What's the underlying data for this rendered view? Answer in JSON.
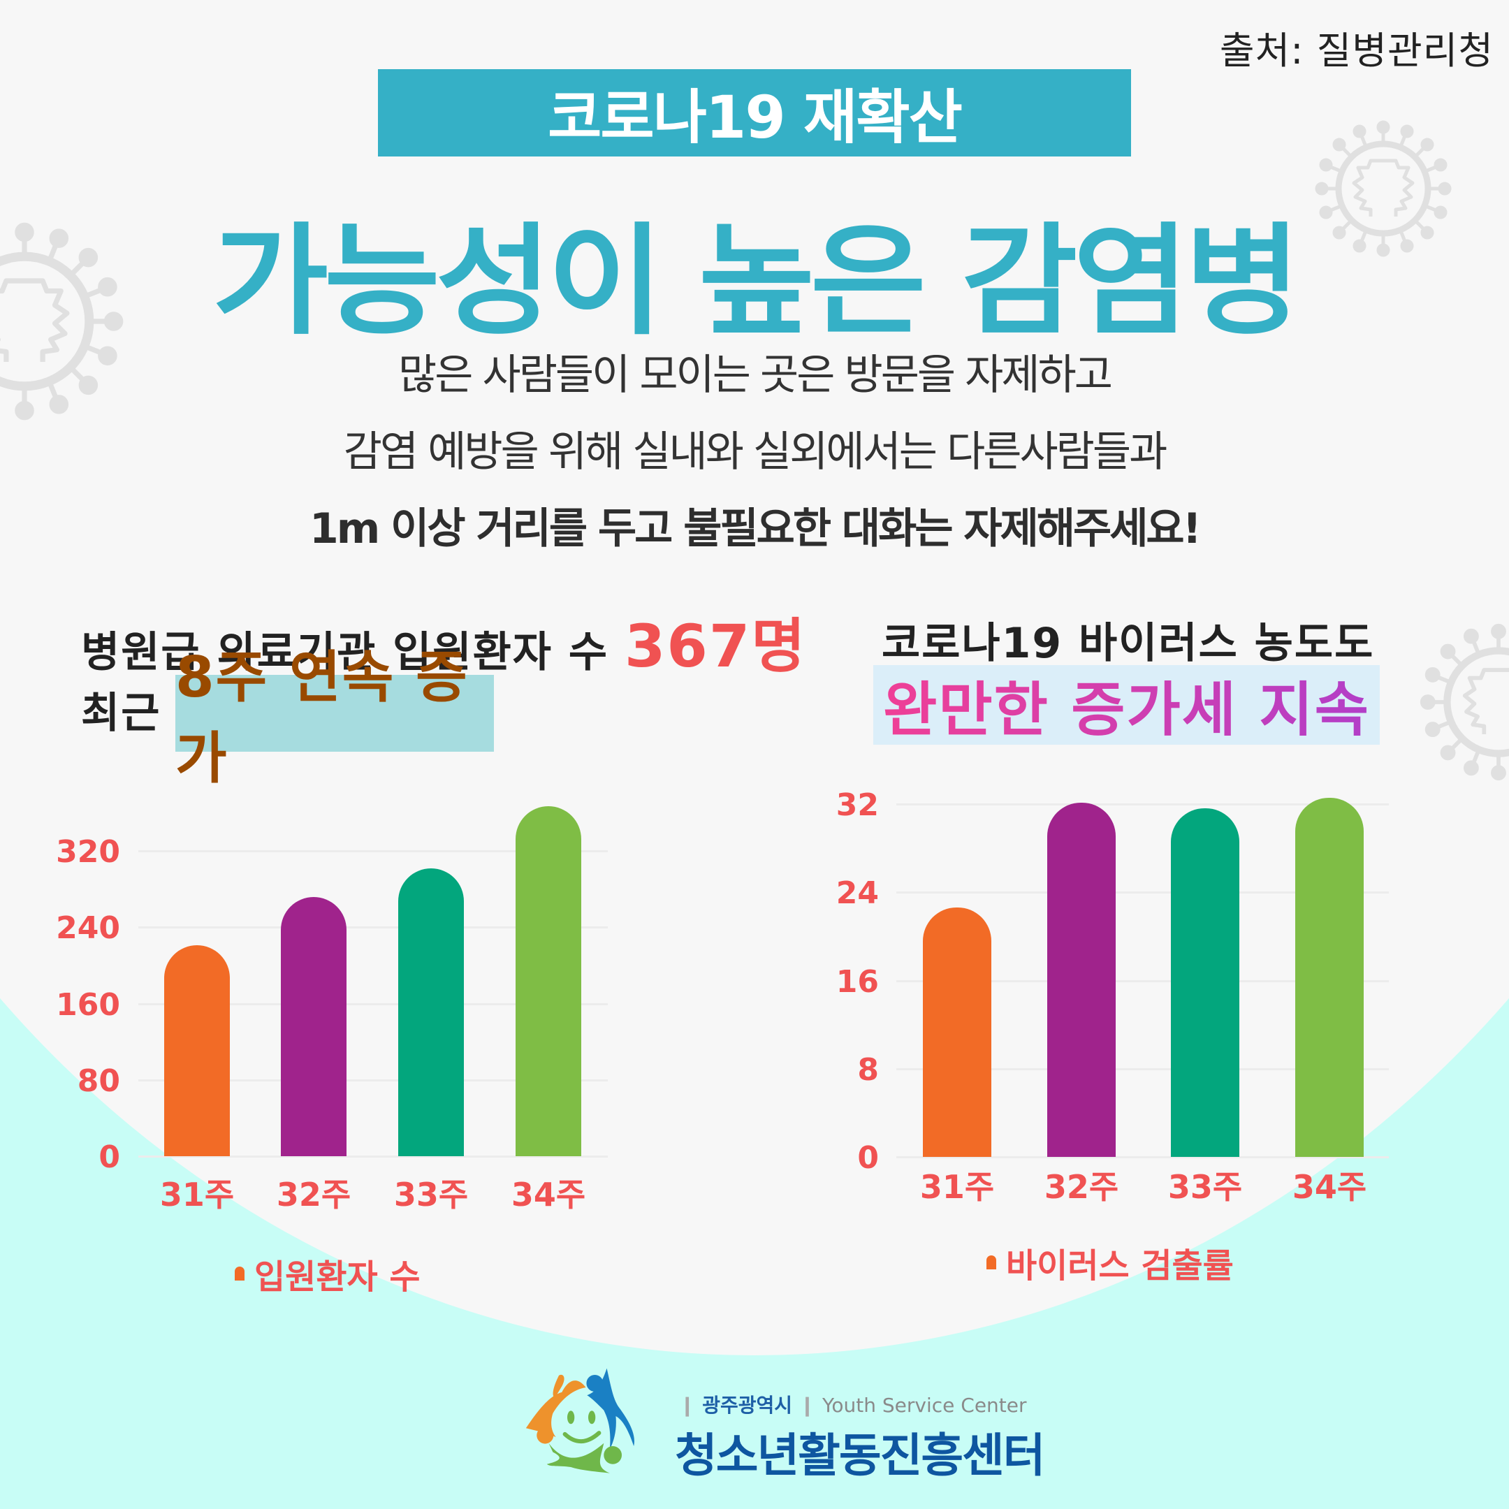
{
  "source": "출처: 질병관리청",
  "header": {
    "title_bar": "코로나19 재확산",
    "big_title": "가능성이 높은 감염병",
    "accent_color": "#35b0c6"
  },
  "body": {
    "line1": "많은 사람들이 모이는 곳은 방문을 자제하고",
    "line2": "감염 예방을 위해 실내와 실외에서는 다른사람들과",
    "line3": "1m 이상 거리를 두고 불필요한 대화는 자제해주세요!"
  },
  "left_panel": {
    "subtitle_prefix": "병원급 의료기관 입원환자 수",
    "subtitle_number": "367명",
    "line2_prefix": "최근",
    "highlight": "8주 연속 증가",
    "highlight_bg": "#a6dcdf",
    "highlight_color": "#994a00"
  },
  "right_panel": {
    "subtitle": "코로나19 바이러스 농도도",
    "highlight": "완만한 증가세 지속",
    "highlight_bg": "#dbeef9"
  },
  "chart_data": [
    {
      "type": "bar",
      "title": "병원급 의료기관 입원환자 수",
      "categories": [
        "31주",
        "32주",
        "33주",
        "34주"
      ],
      "values": [
        221,
        272,
        302,
        367
      ],
      "bar_colors": [
        "#f26b26",
        "#a0238c",
        "#03a67d",
        "#7fbd45"
      ],
      "yticks": [
        "0",
        "80",
        "160",
        "240",
        "320"
      ],
      "ylim": [
        0,
        367
      ],
      "legend": "입원환자 수",
      "xlabel": "",
      "ylabel": "",
      "grid": true,
      "legend_position": "bottom"
    },
    {
      "type": "bar",
      "title": "코로나19 바이러스 농도",
      "categories": [
        "31주",
        "32주",
        "33주",
        "34주"
      ],
      "values": [
        22.6,
        32.1,
        31.6,
        32.6
      ],
      "bar_colors": [
        "#f26b26",
        "#a0238c",
        "#03a67d",
        "#7fbd45"
      ],
      "yticks": [
        "0",
        "8",
        "16",
        "24",
        "32"
      ],
      "ylim": [
        0,
        32.6
      ],
      "legend": "바이러스 검출률",
      "xlabel": "",
      "ylabel": "",
      "grid": true,
      "legend_position": "bottom"
    }
  ],
  "footer": {
    "org_region": "광주광역시",
    "org_english": "Youth Service Center",
    "org_name": "청소년활동진흥센터"
  }
}
